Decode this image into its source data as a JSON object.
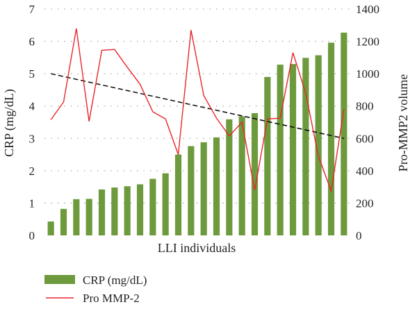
{
  "chart_data": {
    "type": "bar+line",
    "xlabel": "LLI individuals",
    "ylabel_left": "CRP (mg/dL)",
    "ylabel_right": "Pro-MMP2 volume",
    "ylim_left": [
      0,
      7
    ],
    "ylim_right": [
      0,
      1400
    ],
    "yticks_left": [
      "0",
      "1",
      "2",
      "3",
      "4",
      "5",
      "6",
      "7"
    ],
    "yticks_right": [
      "0",
      "200",
      "400",
      "600",
      "800",
      "1000",
      "1200",
      "1400"
    ],
    "grid": "dotted horizontal",
    "legend_placement": "bottom-left",
    "colors": {
      "bar": "#6e9a3e",
      "line": "#e8242a",
      "trend": "#111111",
      "grid": "#9a9a9a"
    },
    "series": [
      {
        "name": "CRP (mg/dL)",
        "kind": "bar",
        "axis": "left",
        "values": [
          0.43,
          0.82,
          1.12,
          1.13,
          1.42,
          1.48,
          1.52,
          1.58,
          1.75,
          1.92,
          2.5,
          2.76,
          2.88,
          3.03,
          3.59,
          3.68,
          3.78,
          4.9,
          5.28,
          5.3,
          5.49,
          5.57,
          5.96,
          6.27
        ]
      },
      {
        "name": "Pro MMP-2",
        "kind": "line",
        "axis": "right",
        "values": [
          715,
          825,
          1280,
          705,
          1145,
          1150,
          1040,
          935,
          765,
          720,
          500,
          1270,
          865,
          725,
          615,
          700,
          280,
          720,
          725,
          1130,
          880,
          490,
          275,
          780
        ]
      },
      {
        "kind": "trendline",
        "axis": "left",
        "values": [
          5.0,
          3.0
        ]
      }
    ]
  }
}
